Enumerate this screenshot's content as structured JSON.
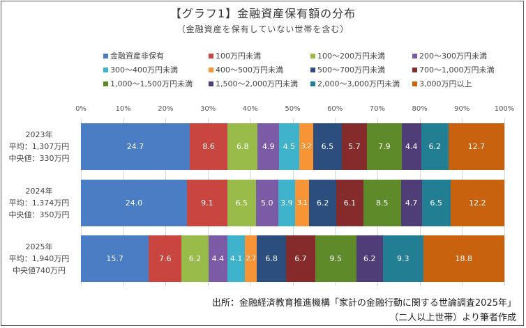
{
  "title": "【グラフ1】金融資産保有額の分布",
  "subtitle": "（金融資産を保有していない世帯を含む）",
  "source_line1": "出所：金融経済教育推進機構「家計の金融行動に関する世論調査2025年」",
  "source_line2": "（二人以上世帯）より筆者作成",
  "chart_data": {
    "type": "bar",
    "orientation": "horizontal",
    "stacked": "percent",
    "title": "【グラフ1】金融資産保有額の分布",
    "subtitle": "（金融資産を保有していない世帯を含む）",
    "xlim": [
      0,
      100
    ],
    "x_ticks": [
      "0%",
      "10%",
      "20%",
      "30%",
      "40%",
      "50%",
      "60%",
      "70%",
      "80%",
      "90%",
      "100%"
    ],
    "grid": true,
    "legend_position": "top",
    "categories": [
      {
        "year": "2023年",
        "mean": "平均：1,307万円",
        "median": "中央値：330万円"
      },
      {
        "year": "2024年",
        "mean": "平均：1,374万円",
        "median": "中央値：350万円"
      },
      {
        "year": "2025年",
        "mean": "平均：1,940万円",
        "median": "中央値740万円"
      }
    ],
    "series": [
      {
        "name": "金融資産非保有",
        "color": "#4a7dc4",
        "values": [
          24.7,
          24.0,
          15.7
        ]
      },
      {
        "name": "100万円未満",
        "color": "#c9453f",
        "values": [
          8.6,
          9.1,
          7.6
        ]
      },
      {
        "name": "100～200万円未満",
        "color": "#98bb49",
        "values": [
          6.8,
          6.5,
          6.2
        ]
      },
      {
        "name": "200～300万円未満",
        "color": "#7b5aa6",
        "values": [
          4.9,
          5.0,
          4.4
        ]
      },
      {
        "name": "300～400万円未満",
        "color": "#3fb2cc",
        "values": [
          4.5,
          3.9,
          4.1
        ]
      },
      {
        "name": "400～500万円未満",
        "color": "#f79436",
        "values": [
          3.2,
          3.1,
          2.7
        ]
      },
      {
        "name": "500～700万円未満",
        "color": "#2b4e7f",
        "values": [
          6.5,
          6.2,
          6.8
        ]
      },
      {
        "name": "700～1,000万円未満",
        "color": "#862b2b",
        "values": [
          5.7,
          6.1,
          6.7
        ]
      },
      {
        "name": "1,000～1,500万円未満",
        "color": "#5f8a2a",
        "values": [
          7.9,
          8.5,
          9.5
        ]
      },
      {
        "name": "1,500～2,000万円未満",
        "color": "#4f3d78",
        "values": [
          4.4,
          4.7,
          6.2
        ]
      },
      {
        "name": "2,000～3,000万円未満",
        "color": "#217e93",
        "values": [
          6.2,
          6.5,
          9.3
        ]
      },
      {
        "name": "3,000万円以上",
        "color": "#c8620f",
        "values": [
          12.7,
          12.2,
          18.8
        ]
      }
    ],
    "data_labels": [
      [
        "24.7",
        "8.6",
        "6.8",
        "4.9",
        "4.5",
        "3.2",
        "6.5",
        "5.7",
        "7.9",
        "4.4",
        "6.2",
        "12.7"
      ],
      [
        "24.0",
        "9.1",
        "6.5",
        "5.0",
        "3.9",
        "3.1",
        "6.2",
        "6.1",
        "8.5",
        "4.7",
        "6.5",
        "12.2"
      ],
      [
        "15.7",
        "7.6",
        "6.2",
        "4.4",
        "4.1",
        "2.7",
        "6.8",
        "6.7",
        "9.5",
        "6.2",
        "9.3",
        "18.8"
      ]
    ]
  }
}
